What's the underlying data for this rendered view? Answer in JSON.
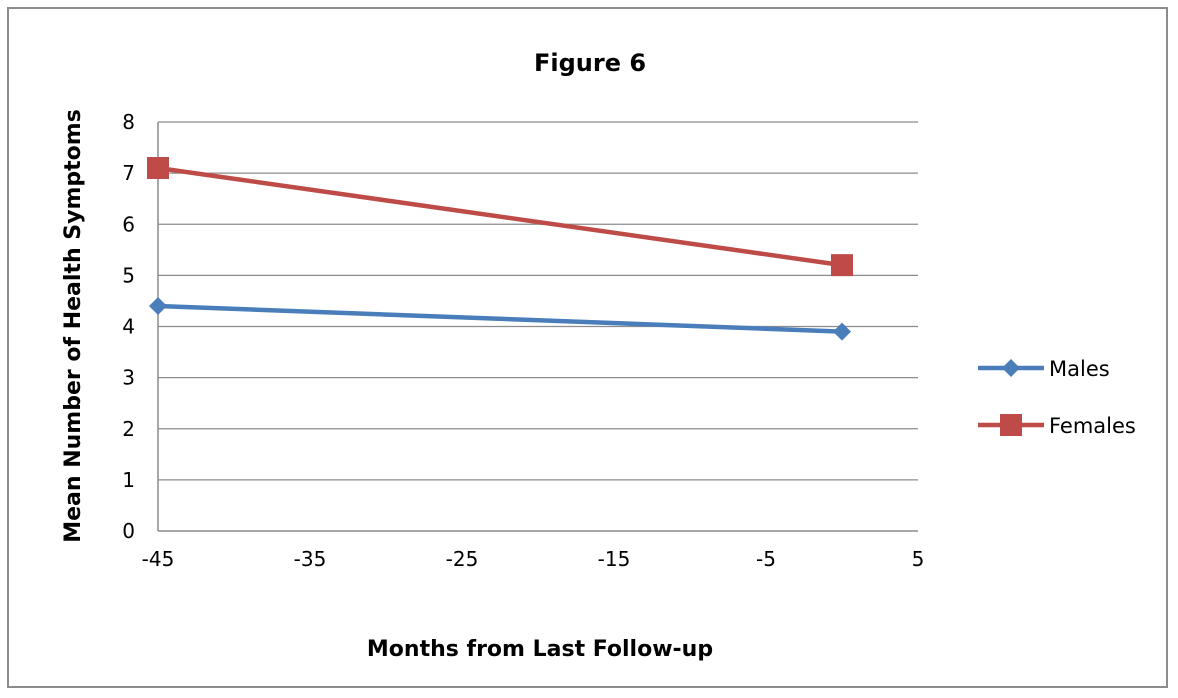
{
  "chart_data": {
    "type": "line",
    "title": "Figure 6",
    "xlabel": "Months from Last Follow-up",
    "ylabel": "Mean Number of Health Symptoms",
    "xlim": [
      -45,
      5
    ],
    "ylim": [
      0,
      8
    ],
    "xticks": [
      -45,
      -35,
      -25,
      -15,
      -5,
      5
    ],
    "yticks": [
      0,
      1,
      2,
      3,
      4,
      5,
      6,
      7,
      8
    ],
    "grid": "horizontal",
    "legend_position": "right",
    "series": [
      {
        "name": "Males",
        "color": "#4a7ebb",
        "marker": "diamond",
        "x": [
          -45,
          0
        ],
        "y": [
          4.4,
          3.9
        ]
      },
      {
        "name": "Females",
        "color": "#be4b48",
        "marker": "square",
        "x": [
          -45,
          0
        ],
        "y": [
          7.1,
          5.2
        ]
      }
    ]
  }
}
